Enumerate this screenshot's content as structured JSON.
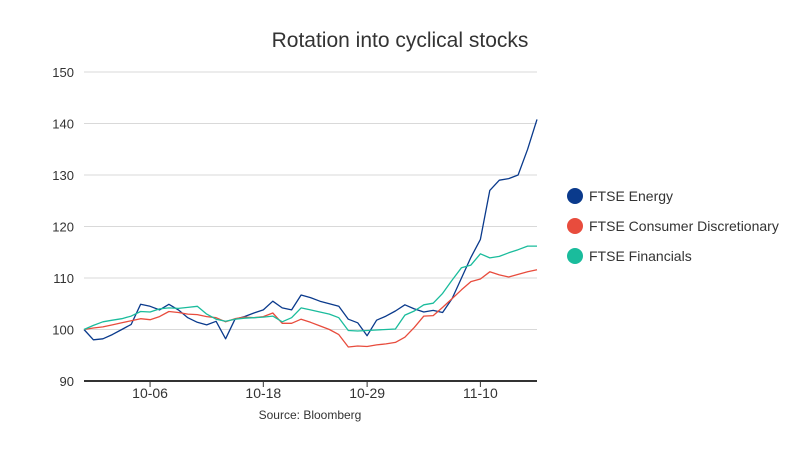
{
  "chart_data": {
    "type": "line",
    "title": "Rotation into cyclical stocks",
    "source": "Source: Bloomberg",
    "xlabel": "",
    "ylabel": "",
    "ylim": [
      90,
      150
    ],
    "yticks": [
      90,
      100,
      110,
      120,
      130,
      140,
      150
    ],
    "x_tick_labels": [
      {
        "label": "10-06",
        "index": 7
      },
      {
        "label": "10-18",
        "index": 19
      },
      {
        "label": "10-29",
        "index": 30
      },
      {
        "label": "11-10",
        "index": 42
      }
    ],
    "x_count": 49,
    "grid": true,
    "legend_position": "right",
    "series": [
      {
        "name": "FTSE Energy",
        "color": "#0a3a8c",
        "values": [
          100.0,
          98.0,
          98.2,
          99.0,
          100.0,
          101.0,
          104.9,
          104.5,
          103.8,
          104.9,
          103.8,
          102.3,
          101.4,
          100.9,
          101.6,
          98.2,
          102.0,
          102.5,
          103.2,
          103.8,
          105.5,
          104.2,
          103.8,
          106.7,
          106.2,
          105.5,
          105.0,
          104.5,
          102.0,
          101.3,
          98.8,
          101.8,
          102.6,
          103.6,
          104.8,
          104.0,
          103.4,
          103.7,
          103.3,
          106.0,
          110.0,
          114.0,
          117.5,
          127.0,
          129.0,
          129.3,
          130.0,
          135.0,
          140.8
        ]
      },
      {
        "name": "FTSE Consumer Discretionary",
        "color": "#e84c3d",
        "values": [
          100.0,
          100.3,
          100.5,
          100.9,
          101.3,
          101.7,
          102.1,
          101.9,
          102.5,
          103.5,
          103.3,
          103.0,
          102.9,
          102.5,
          102.3,
          101.5,
          102.1,
          102.4,
          102.3,
          102.5,
          103.2,
          101.2,
          101.2,
          102.0,
          101.4,
          100.7,
          100.0,
          99.0,
          96.6,
          96.8,
          96.7,
          97.0,
          97.2,
          97.5,
          98.5,
          100.4,
          102.6,
          102.7,
          104.3,
          106.0,
          107.7,
          109.3,
          109.8,
          111.2,
          110.6,
          110.2,
          110.7,
          111.2,
          111.6
        ]
      },
      {
        "name": "FTSE Financials",
        "color": "#1abc9c",
        "values": [
          100.0,
          100.8,
          101.5,
          101.8,
          102.1,
          102.6,
          103.5,
          103.4,
          104.0,
          104.2,
          104.1,
          104.3,
          104.5,
          103.0,
          102.0,
          101.6,
          102.0,
          102.2,
          102.3,
          102.4,
          102.6,
          101.5,
          102.3,
          104.2,
          103.8,
          103.4,
          103.0,
          102.3,
          99.8,
          99.7,
          99.8,
          99.9,
          100.0,
          100.1,
          102.8,
          103.6,
          104.8,
          105.1,
          107.0,
          109.6,
          112.0,
          112.5,
          114.7,
          113.9,
          114.2,
          114.9,
          115.5,
          116.2,
          116.2
        ]
      }
    ]
  }
}
